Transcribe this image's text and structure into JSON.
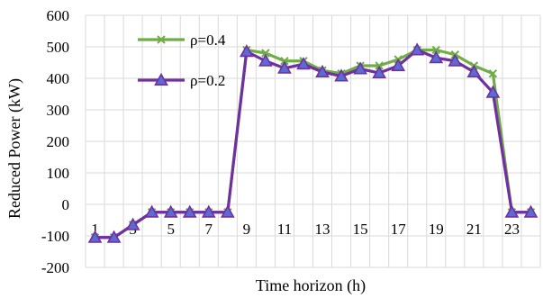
{
  "chart_data": {
    "type": "line",
    "title": "",
    "xlabel": "Time horizon (h)",
    "ylabel": "Reduced Power (kW)",
    "ylim": [
      -200,
      600
    ],
    "yticks": [
      "-200",
      "-100",
      "0",
      "100",
      "200",
      "300",
      "400",
      "500",
      "600"
    ],
    "x": [
      1,
      2,
      3,
      4,
      5,
      6,
      7,
      8,
      9,
      10,
      11,
      12,
      13,
      14,
      15,
      16,
      17,
      18,
      19,
      20,
      21,
      22,
      23,
      24
    ],
    "xtick_labels": [
      "1",
      "3",
      "5",
      "7",
      "9",
      "11",
      "13",
      "15",
      "17",
      "19",
      "21",
      "23"
    ],
    "grid": "both",
    "legend_position": "top-left",
    "series": [
      {
        "name": "ρ=0.4",
        "color": "#70AD47",
        "marker": "x",
        "values": [
          -105,
          -105,
          -65,
          -25,
          -25,
          -25,
          -25,
          -25,
          490,
          480,
          455,
          455,
          425,
          415,
          440,
          440,
          460,
          490,
          490,
          475,
          440,
          415,
          -25,
          -25
        ]
      },
      {
        "name": "ρ=0.2",
        "color": "#7030A0",
        "marker": "triangle",
        "values": [
          -105,
          -105,
          -65,
          -25,
          -25,
          -25,
          -25,
          -25,
          485,
          455,
          432,
          445,
          420,
          407,
          430,
          417,
          440,
          490,
          465,
          455,
          420,
          355,
          -25,
          -25
        ]
      }
    ]
  }
}
